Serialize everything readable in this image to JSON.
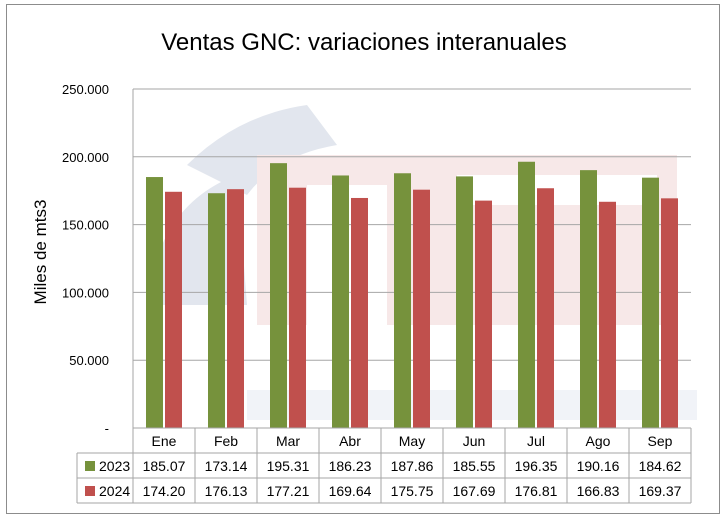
{
  "chart_data": {
    "type": "bar",
    "title": "Ventas GNC: variaciones interanuales",
    "xlabel": "",
    "ylabel": "Miles de mts3",
    "ylim": [
      0,
      250000
    ],
    "yticks": [
      0,
      50000,
      100000,
      150000,
      200000,
      250000
    ],
    "ytick_labels": [
      "-",
      "50.000",
      "100.000",
      "150.000",
      "200.000",
      "250.000"
    ],
    "grid": true,
    "legend": "data-table",
    "categories": [
      "Ene",
      "Feb",
      "Mar",
      "Abr",
      "May",
      "Jun",
      "Jul",
      "Ago",
      "Sep"
    ],
    "series": [
      {
        "name": "2023",
        "color": "#76923c",
        "values": [
          185070,
          173140,
          195310,
          186230,
          187860,
          185550,
          196350,
          190160,
          184620
        ],
        "table_labels": [
          "185.07",
          "173.14",
          "195.31",
          "186.23",
          "187.86",
          "185.55",
          "196.35",
          "190.16",
          "184.62"
        ]
      },
      {
        "name": "2024",
        "color": "#c0504d",
        "values": [
          174200,
          176130,
          177210,
          169640,
          175750,
          167690,
          176810,
          166830,
          169370
        ],
        "table_labels": [
          "174.20",
          "176.13",
          "177.21",
          "169.64",
          "175.75",
          "167.69",
          "176.81",
          "166.83",
          "169.37"
        ]
      }
    ]
  }
}
